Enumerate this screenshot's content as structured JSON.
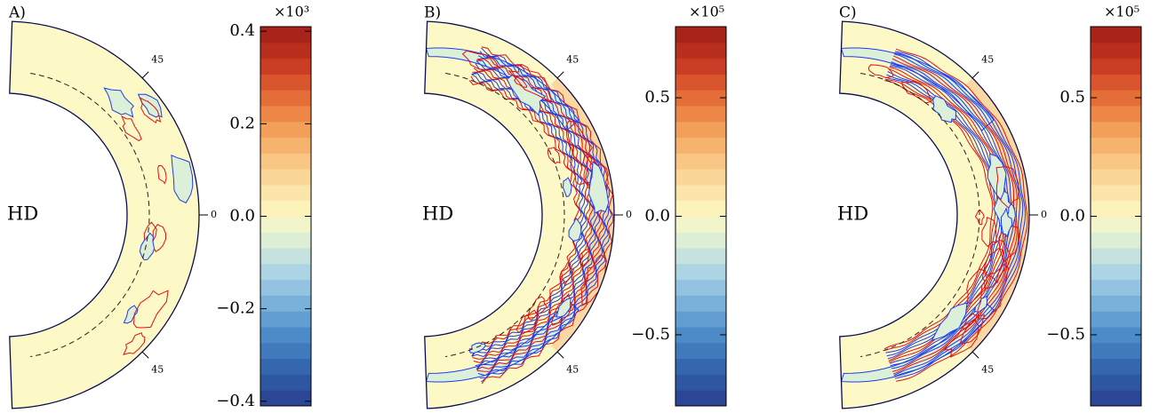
{
  "panels": [
    {
      "label": "A)",
      "region": "HD",
      "latitudes": [
        "45",
        "0",
        "45"
      ],
      "colorbar": {
        "multiplier": "×10³",
        "lim": [
          -0.41,
          0.41
        ],
        "ticks": [
          {
            "value": 0.4,
            "label": "0.4"
          },
          {
            "value": 0.2,
            "label": "0.2"
          },
          {
            "value": 0,
            "label": "0.0"
          },
          {
            "value": -0.2,
            "label": "−0.2"
          },
          {
            "value": -0.4,
            "label": "−0.4"
          }
        ]
      }
    },
    {
      "label": "B)",
      "region": "HD",
      "latitudes": [
        "45",
        "0",
        "45"
      ],
      "colorbar": {
        "multiplier": "×10⁵",
        "lim": [
          -0.8,
          0.8
        ],
        "ticks": [
          {
            "value": 0.5,
            "label": "0.5"
          },
          {
            "value": 0,
            "label": "0.0"
          },
          {
            "value": -0.5,
            "label": "−0.5"
          }
        ]
      }
    },
    {
      "label": "C)",
      "region": "HD",
      "latitudes": [
        "45",
        "0",
        "45"
      ],
      "colorbar": {
        "multiplier": "×10⁵",
        "lim": [
          -0.8,
          0.8
        ],
        "ticks": [
          {
            "value": 0.5,
            "label": "0.5"
          },
          {
            "value": 0,
            "label": "0.0"
          },
          {
            "value": -0.5,
            "label": "−0.5"
          }
        ]
      }
    }
  ]
}
